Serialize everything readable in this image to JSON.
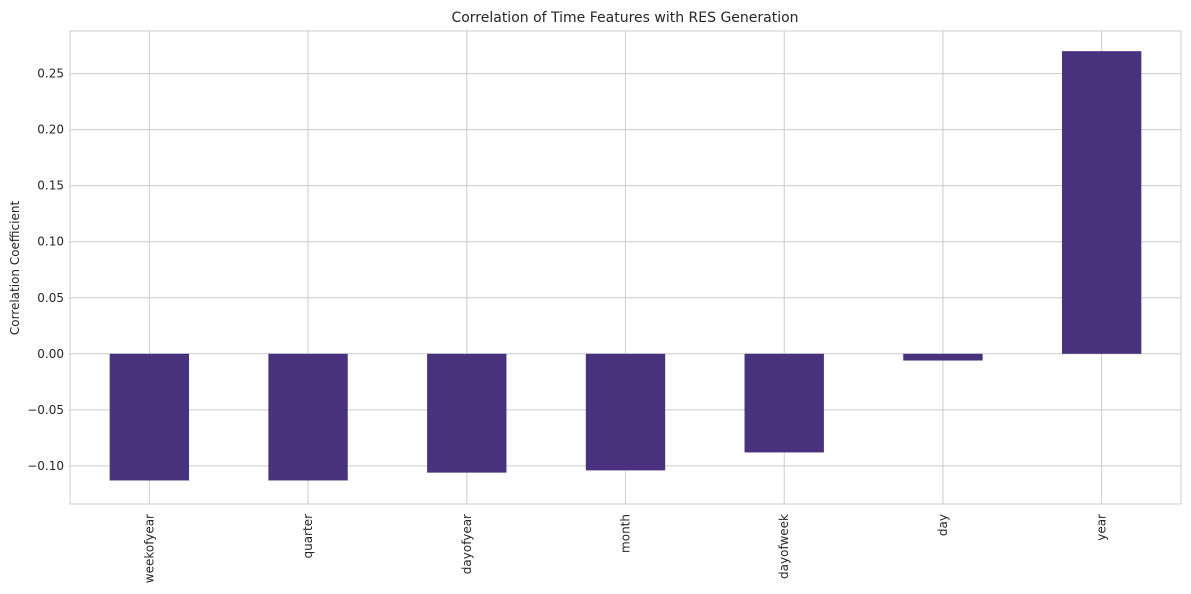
{
  "chart_data": {
    "type": "bar",
    "title": "Correlation of Time Features with RES Generation",
    "xlabel": "",
    "ylabel": "Correlation Coefficient",
    "categories": [
      "weekofyear",
      "quarter",
      "dayofyear",
      "month",
      "dayofweek",
      "day",
      "year"
    ],
    "values": [
      -0.113,
      -0.113,
      -0.106,
      -0.104,
      -0.088,
      -0.006,
      0.27
    ],
    "ylim": [
      -0.134,
      0.288
    ],
    "yticks": [
      -0.1,
      -0.05,
      0.0,
      0.05,
      0.1,
      0.15,
      0.2,
      0.25
    ],
    "ytick_labels": [
      "−0.10",
      "−0.05",
      "0.00",
      "0.05",
      "0.10",
      "0.15",
      "0.20",
      "0.25"
    ],
    "grid": true,
    "legend": "none",
    "colors": {
      "bar": "#48317d",
      "grid": "#cccccc",
      "axis": "#cccccc"
    }
  }
}
